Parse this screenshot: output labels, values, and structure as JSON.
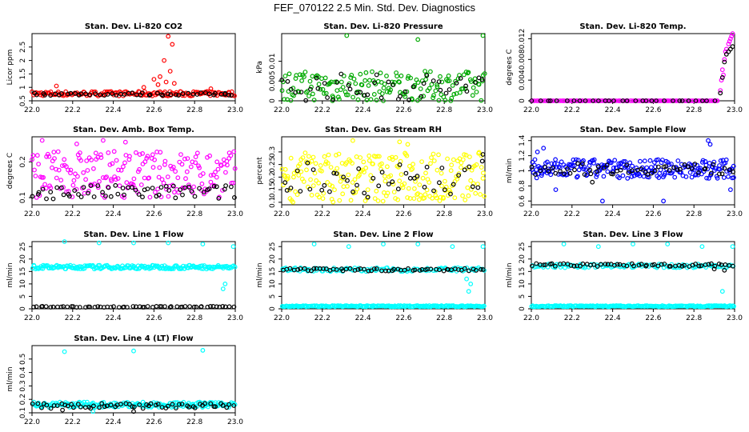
{
  "page_title": "FEF_070122  2.5 Min. Std. Dev. Diagnostics",
  "chart_data": [
    {
      "type": "scatter",
      "title": "Stan. Dev. Li-820 CO2",
      "ylabel": "Licor ppm",
      "xlim": [
        22.0,
        23.0
      ],
      "ylim": [
        0.5,
        3.0
      ],
      "yticks": [
        0.5,
        1.0,
        1.5,
        2.0,
        2.5
      ],
      "xticks": [
        22.0,
        22.2,
        22.4,
        22.6,
        22.8,
        23.0
      ],
      "series": [
        {
          "color": "#ff0000",
          "band": [
            0.68,
            0.85
          ],
          "n": 160,
          "outliers": [
            [
              22.12,
              1.05
            ],
            [
              22.55,
              1.0
            ],
            [
              22.6,
              1.3
            ],
            [
              22.62,
              1.1
            ],
            [
              22.63,
              1.4
            ],
            [
              22.65,
              2.0
            ],
            [
              22.66,
              1.2
            ],
            [
              22.67,
              2.9
            ],
            [
              22.68,
              1.6
            ],
            [
              22.69,
              2.6
            ],
            [
              22.7,
              1.15
            ],
            [
              22.88,
              0.95
            ]
          ]
        },
        {
          "color": "#000000",
          "band": [
            0.7,
            0.8
          ],
          "n": 50,
          "outliers": [
            [
              22.95,
              0.78
            ]
          ]
        }
      ]
    },
    {
      "type": "scatter",
      "title": "Stan. Dev. Li-820 Pressure",
      "ylabel": "kPa",
      "xlim": [
        22.0,
        23.0
      ],
      "ylim": [
        0.0,
        0.017
      ],
      "yticks": [
        0.0,
        0.005,
        0.01
      ],
      "xticks": [
        22.0,
        22.2,
        22.4,
        22.6,
        22.8,
        23.0
      ],
      "series": [
        {
          "color": "#00aa00",
          "band": [
            0.0,
            0.0075
          ],
          "n": 170,
          "outliers": [
            [
              22.32,
              0.0165
            ],
            [
              22.67,
              0.0155
            ],
            [
              22.99,
              0.0165
            ],
            [
              22.25,
              0.0
            ],
            [
              22.5,
              0.0
            ]
          ]
        },
        {
          "color": "#000000",
          "band": [
            0.0,
            0.007
          ],
          "n": 45,
          "outliers": []
        }
      ]
    },
    {
      "type": "scatter",
      "title": "Stan. Dev. Li-820 Temp.",
      "ylabel": "degrees C",
      "xlim": [
        22.0,
        23.0
      ],
      "ylim": [
        0.0,
        0.013
      ],
      "yticks": [
        0.0,
        0.004,
        0.008,
        0.012
      ],
      "xticks": [
        22.0,
        22.2,
        22.4,
        22.6,
        22.8,
        23.0
      ],
      "series": [
        {
          "color": "#ff00ff",
          "band": [
            0.0,
            0.0
          ],
          "n": 120,
          "xrange": [
            22.0,
            22.92
          ],
          "outliers": [
            [
              22.93,
              0.002
            ],
            [
              22.935,
              0.004
            ],
            [
              22.94,
              0.006
            ],
            [
              22.95,
              0.008
            ],
            [
              22.955,
              0.0095
            ],
            [
              22.96,
              0.01
            ],
            [
              22.97,
              0.011
            ],
            [
              22.975,
              0.0115
            ],
            [
              22.98,
              0.012
            ],
            [
              22.985,
              0.0125
            ],
            [
              22.99,
              0.013
            ],
            [
              22.945,
              0.005
            ]
          ]
        },
        {
          "color": "#000000",
          "band": [
            0.0,
            0.0
          ],
          "n": 30,
          "xrange": [
            22.0,
            22.92
          ],
          "outliers": [
            [
              22.93,
              0.0015
            ],
            [
              22.94,
              0.0045
            ],
            [
              22.95,
              0.0075
            ],
            [
              22.96,
              0.009
            ],
            [
              22.97,
              0.0095
            ],
            [
              22.98,
              0.01
            ],
            [
              22.99,
              0.0105
            ]
          ]
        }
      ]
    },
    {
      "type": "scatter",
      "title": "Stan. Dev. Amb. Box Temp.",
      "ylabel": "degrees C",
      "xlim": [
        22.0,
        23.0
      ],
      "ylim": [
        0.08,
        0.27
      ],
      "yticks": [
        0.1,
        0.2
      ],
      "xticks": [
        22.0,
        22.2,
        22.4,
        22.6,
        22.8,
        23.0
      ],
      "series": [
        {
          "color": "#ff00ff",
          "band": [
            0.1,
            0.23
          ],
          "n": 200,
          "outliers": [
            [
              22.05,
              0.26
            ],
            [
              22.22,
              0.25
            ],
            [
              22.35,
              0.26
            ],
            [
              22.46,
              0.255
            ]
          ]
        },
        {
          "color": "#000000",
          "band": [
            0.095,
            0.135
          ],
          "n": 60,
          "outliers": []
        }
      ]
    },
    {
      "type": "scatter",
      "title": "Stan. Dev. Gas Stream RH",
      "ylabel": "percent",
      "xlim": [
        22.0,
        23.0
      ],
      "ylim": [
        0.09,
        0.36
      ],
      "yticks": [
        0.1,
        0.15,
        0.2,
        0.25,
        0.3
      ],
      "xticks": [
        22.0,
        22.2,
        22.4,
        22.6,
        22.8,
        23.0
      ],
      "series": [
        {
          "color": "#ffff00",
          "band": [
            0.1,
            0.3
          ],
          "n": 230,
          "outliers": [
            [
              22.35,
              0.345
            ],
            [
              22.58,
              0.34
            ],
            [
              22.62,
              0.33
            ]
          ]
        },
        {
          "color": "#000000",
          "band": [
            0.12,
            0.27
          ],
          "n": 45,
          "outliers": [
            [
              22.99,
              0.29
            ]
          ]
        }
      ]
    },
    {
      "type": "scatter",
      "title": "Stan. Dev. Sample Flow",
      "ylabel": "ml/min",
      "xlim": [
        22.0,
        23.0
      ],
      "ylim": [
        0.55,
        1.45
      ],
      "yticks": [
        0.6,
        0.8,
        1.0,
        1.2,
        1.4
      ],
      "xticks": [
        22.0,
        22.2,
        22.4,
        22.6,
        22.8,
        23.0
      ],
      "series": [
        {
          "color": "#0000ff",
          "band": [
            0.9,
            1.15
          ],
          "n": 230,
          "outliers": [
            [
              22.03,
              1.25
            ],
            [
              22.06,
              1.3
            ],
            [
              22.12,
              0.75
            ],
            [
              22.35,
              0.6
            ],
            [
              22.65,
              0.6
            ],
            [
              22.87,
              1.4
            ],
            [
              22.98,
              0.75
            ],
            [
              22.88,
              1.35
            ]
          ]
        },
        {
          "color": "#000000",
          "band": [
            0.95,
            1.1
          ],
          "n": 55,
          "outliers": [
            [
              22.3,
              0.85
            ]
          ]
        }
      ]
    },
    {
      "type": "scatter",
      "title": "Stan. Dev. Line 1 Flow",
      "ylabel": "ml/min",
      "xlim": [
        22.0,
        23.0
      ],
      "ylim": [
        0.0,
        27.0
      ],
      "yticks": [
        0,
        5,
        10,
        15,
        20,
        25
      ],
      "xticks": [
        22.0,
        22.2,
        22.4,
        22.6,
        22.8,
        23.0
      ],
      "series": [
        {
          "color": "#00ffff",
          "band": [
            16.0,
            17.5
          ],
          "n": 200,
          "outliers": [
            [
              22.16,
              27
            ],
            [
              22.33,
              26.5
            ],
            [
              22.5,
              26.5
            ],
            [
              22.67,
              26.5
            ],
            [
              22.84,
              26
            ],
            [
              22.99,
              25
            ],
            [
              22.95,
              10
            ],
            [
              22.94,
              8
            ]
          ]
        },
        {
          "color": "#000000",
          "band": [
            0.6,
            1.0
          ],
          "n": 60,
          "outliers": []
        }
      ]
    },
    {
      "type": "scatter",
      "title": "Stan. Dev. Line 2 Flow",
      "ylabel": "ml/min",
      "xlim": [
        22.0,
        23.0
      ],
      "ylim": [
        0.0,
        27.0
      ],
      "yticks": [
        0,
        5,
        10,
        15,
        20,
        25
      ],
      "xticks": [
        22.0,
        22.2,
        22.4,
        22.6,
        22.8,
        23.0
      ],
      "series": [
        {
          "color": "#00ffff",
          "band": [
            0.8,
            1.3
          ],
          "n": 200,
          "outliers": [
            [
              22.16,
              26
            ],
            [
              22.33,
              25
            ],
            [
              22.5,
              26
            ],
            [
              22.67,
              26
            ],
            [
              22.84,
              25
            ],
            [
              22.99,
              25
            ],
            [
              22.93,
              10
            ],
            [
              22.92,
              7
            ],
            [
              22.91,
              12
            ]
          ]
        },
        {
          "color": "#00ffff",
          "band": [
            15.0,
            16.5
          ],
          "n": 120,
          "outliers": []
        },
        {
          "color": "#000000",
          "band": [
            15.2,
            16.2
          ],
          "n": 60,
          "outliers": []
        }
      ]
    },
    {
      "type": "scatter",
      "title": "Stan. Dev. Line 3 Flow",
      "ylabel": "ml/min",
      "xlim": [
        22.0,
        23.0
      ],
      "ylim": [
        0.0,
        27.0
      ],
      "yticks": [
        0,
        5,
        10,
        15,
        20,
        25
      ],
      "xticks": [
        22.0,
        22.2,
        22.4,
        22.6,
        22.8,
        23.0
      ],
      "series": [
        {
          "color": "#00ffff",
          "band": [
            0.8,
            1.3
          ],
          "n": 200,
          "outliers": [
            [
              22.16,
              26
            ],
            [
              22.33,
              25
            ],
            [
              22.5,
              26
            ],
            [
              22.67,
              26
            ],
            [
              22.84,
              25
            ],
            [
              22.99,
              25
            ],
            [
              22.94,
              7
            ]
          ]
        },
        {
          "color": "#00ffff",
          "band": [
            16.5,
            18.0
          ],
          "n": 120,
          "outliers": []
        },
        {
          "color": "#000000",
          "band": [
            17.0,
            18.2
          ],
          "n": 60,
          "outliers": [
            [
              22.95,
              15.5
            ],
            [
              22.9,
              16.0
            ]
          ]
        }
      ]
    },
    {
      "type": "scatter",
      "title": "Stan. Dev. Line 4 (LT) Flow",
      "ylabel": "ml/min",
      "xlim": [
        22.0,
        23.0
      ],
      "ylim": [
        0.1,
        0.6
      ],
      "yticks": [
        0.1,
        0.2,
        0.3,
        0.4,
        0.5
      ],
      "xticks": [
        22.0,
        22.2,
        22.4,
        22.6,
        22.8,
        23.0
      ],
      "series": [
        {
          "color": "#00ffff",
          "band": [
            0.14,
            0.18
          ],
          "n": 200,
          "outliers": [
            [
              22.16,
              0.555
            ],
            [
              22.5,
              0.56
            ],
            [
              22.84,
              0.565
            ],
            [
              22.3,
              0.11
            ]
          ]
        },
        {
          "color": "#000000",
          "band": [
            0.13,
            0.17
          ],
          "n": 60,
          "outliers": [
            [
              22.5,
              0.11
            ],
            [
              22.15,
              0.12
            ]
          ]
        }
      ]
    }
  ]
}
